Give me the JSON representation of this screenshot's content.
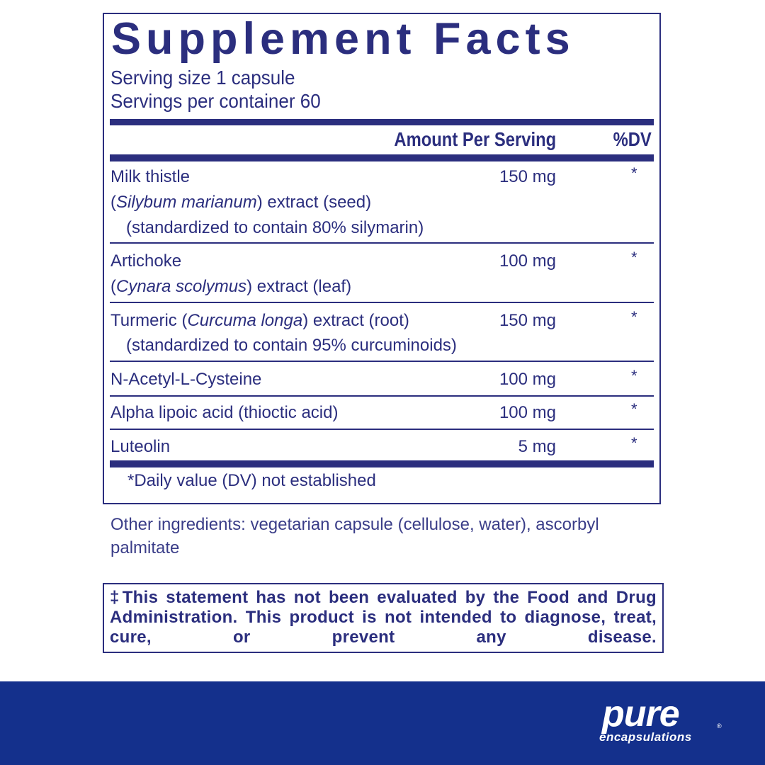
{
  "title": "Supplement Facts",
  "serving_size": "Serving size  1 capsule",
  "servings_per_container": "Servings per container  60",
  "header": {
    "amount": "Amount Per Serving",
    "dv": "%DV"
  },
  "rows": [
    {
      "line1": "Milk thistle",
      "line2_pre": "(",
      "line2_italic": "Silybum marianum",
      "line2_post": ") extract (seed)",
      "line3": "(standardized to contain 80% silymarin)",
      "amount": "150 mg",
      "dv": "*"
    },
    {
      "line1": "Artichoke",
      "line2_pre": "(",
      "line2_italic": "Cynara scolymus",
      "line2_post": ") extract (leaf)",
      "amount": "100 mg",
      "dv": "*"
    },
    {
      "line1_pre": "Turmeric (",
      "line1_italic": "Curcuma longa",
      "line1_post": ") extract (root)",
      "line2": "(standardized to contain 95% curcuminoids)",
      "amount": "150 mg",
      "dv": "*"
    },
    {
      "line1": "N-Acetyl-L-Cysteine",
      "amount": "100 mg",
      "dv": "*"
    },
    {
      "line1": "Alpha lipoic acid (thioctic acid)",
      "amount": "100 mg",
      "dv": "*"
    },
    {
      "line1": "Luteolin",
      "amount": "5 mg",
      "dv": "*"
    }
  ],
  "footnote": "*Daily value (DV) not established",
  "other_ingredients": [
    "Other ingredients: vegetarian capsule (cellulose, water), ascorbyl",
    "palmitate"
  ],
  "disclaimer": "‡This statement has not been evaluated by the Food and Drug Administration. This product is not intended to diagnose, treat, cure, or prevent any disease.",
  "brand": {
    "pure": "pure",
    "encapsulations": "encapsulations",
    "registered": "®"
  },
  "colors": {
    "text": "#2b2e7e",
    "banner": "#14308c"
  }
}
